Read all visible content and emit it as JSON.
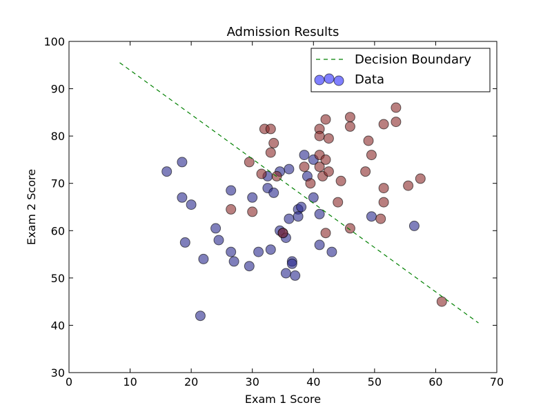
{
  "chart_data": {
    "type": "scatter",
    "title": "Admission Results",
    "xlabel": "Exam 1 Score",
    "ylabel": "Exam 2 Score",
    "xlim": [
      0,
      70
    ],
    "ylim": [
      30,
      100
    ],
    "xticks": [
      0,
      10,
      20,
      30,
      40,
      50,
      60,
      70
    ],
    "yticks": [
      30,
      40,
      50,
      60,
      70,
      80,
      90,
      100
    ],
    "xtick_labels": [
      "0",
      "10",
      "20",
      "30",
      "40",
      "50",
      "60",
      "70"
    ],
    "ytick_labels": [
      "30",
      "40",
      "50",
      "60",
      "70",
      "80",
      "90",
      "100"
    ],
    "grid": false,
    "legend": {
      "placement": "top-right",
      "entries": [
        "Decision Boundary",
        "Data"
      ]
    },
    "boundary": {
      "name": "Decision Boundary",
      "color": "#008000",
      "style": "dashed",
      "x": [
        8.3,
        67
      ],
      "y": [
        95.5,
        40.5
      ]
    },
    "colors": {
      "data": "#0000ff",
      "class_0": "#2a2a8e",
      "class_1": "#8b2a2a"
    },
    "series": [
      {
        "class": 0,
        "x": [
          16,
          18.5,
          18.5,
          19,
          20,
          21.5,
          22,
          24,
          24.5,
          26.5,
          26.5,
          27,
          29.5,
          30,
          31,
          32.5,
          32.5,
          33,
          33.5,
          34.5,
          34.5,
          35,
          35.5,
          35.5,
          36,
          36,
          36.5,
          36.5,
          37,
          37.5,
          37.5,
          38,
          38.5,
          39,
          40,
          40,
          41,
          41,
          43,
          49.5,
          56.5
        ],
        "y": [
          72.5,
          74.5,
          67,
          57.5,
          65.5,
          42,
          54,
          60.5,
          58,
          68.5,
          55.5,
          53.5,
          52.5,
          67,
          55.5,
          71.5,
          69,
          56,
          68,
          72.5,
          60,
          59.5,
          58.5,
          51,
          73,
          62.5,
          53.5,
          53,
          50.5,
          64.5,
          63,
          65,
          76,
          71.5,
          75,
          67,
          63.5,
          57,
          55.5,
          63,
          61
        ]
      },
      {
        "class": 1,
        "x": [
          26.5,
          29.5,
          30,
          31.5,
          32,
          33,
          33,
          33.5,
          34,
          35,
          38.5,
          39.5,
          41,
          41,
          41,
          41,
          41.5,
          42,
          42,
          42,
          42.5,
          42.5,
          44,
          44.5,
          46,
          46,
          46,
          48.5,
          49,
          49.5,
          51,
          51.5,
          51.5,
          51.5,
          53.5,
          53.5,
          55.5,
          57.5,
          61
        ],
        "y": [
          64.5,
          74.5,
          64,
          72,
          81.5,
          81.5,
          76.5,
          78.5,
          71.5,
          59.5,
          73.5,
          70,
          81.5,
          80,
          76,
          73.5,
          71.5,
          83.5,
          75,
          59.5,
          79.5,
          72.5,
          66,
          70.5,
          84,
          82,
          60.5,
          72.5,
          79,
          76,
          62.5,
          82.5,
          69,
          66,
          86,
          83,
          69.5,
          71,
          45
        ]
      }
    ]
  }
}
